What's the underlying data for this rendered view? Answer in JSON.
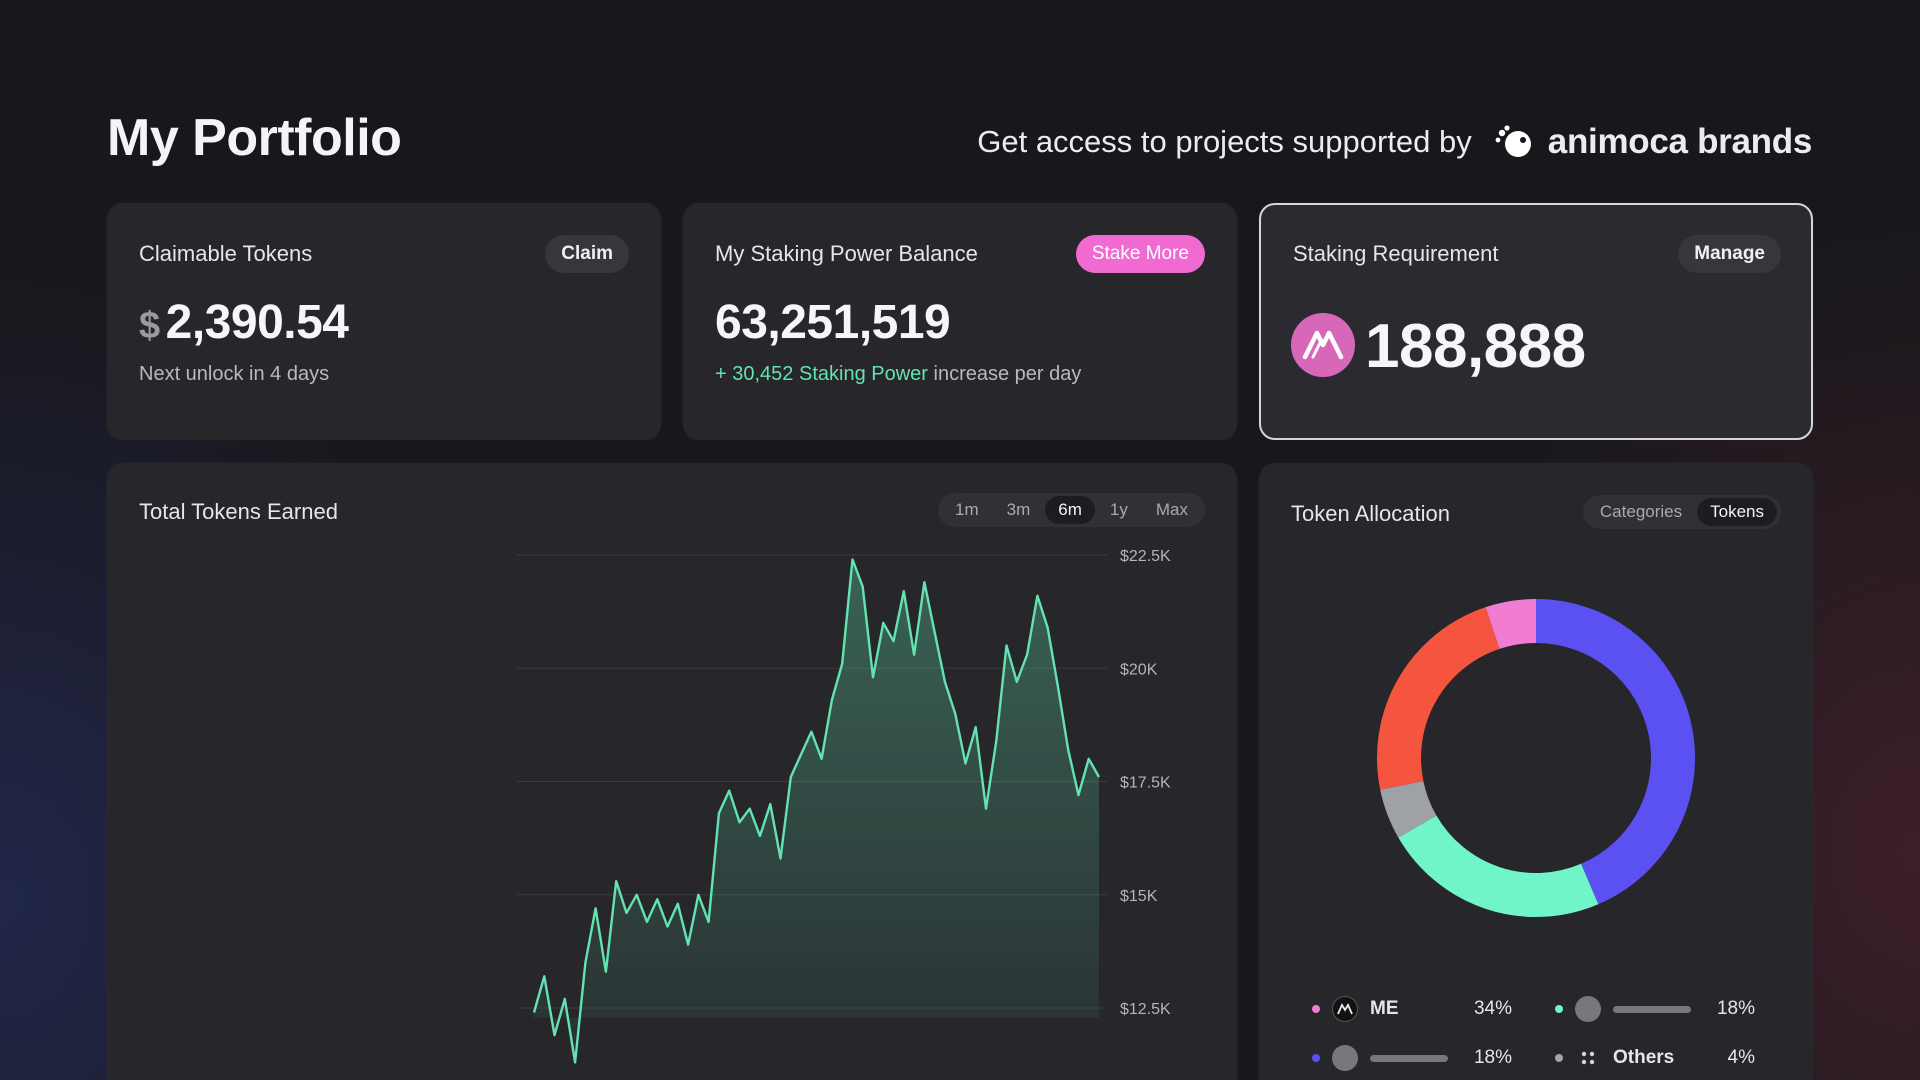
{
  "header": {
    "title": "My Portfolio",
    "partner_text": "Get access to projects supported by",
    "partner_brand": "animoca brands"
  },
  "cards": {
    "claimable": {
      "title": "Claimable Tokens",
      "button": "Claim",
      "currency": "$",
      "amount": "2,390.54",
      "note": "Next unlock in 4 days"
    },
    "staking_power": {
      "title": "My Staking Power Balance",
      "button": "Stake More",
      "amount": "63,251,519",
      "increase": "30,452 Staking Power",
      "increase_suffix": "increase per day"
    },
    "requirement": {
      "title": "Staking Requirement",
      "button": "Manage",
      "amount": "188,888",
      "icon": "me-token-icon"
    }
  },
  "earned": {
    "title": "Total Tokens Earned",
    "ranges": [
      "1m",
      "3m",
      "6m",
      "1y",
      "Max"
    ],
    "active_range": "6m"
  },
  "chart_data": {
    "type": "area",
    "title": "Total Tokens Earned",
    "yaxis_position": "right",
    "y_ticks": [
      "$22.5K",
      "$20K",
      "$17.5K",
      "$15K",
      "$12.5K"
    ],
    "ylim": [
      12500,
      22500
    ],
    "color": "#63e3b0",
    "values": [
      12400,
      13200,
      11900,
      12700,
      11300,
      13500,
      14700,
      13300,
      15300,
      14600,
      15000,
      14400,
      14900,
      14300,
      14800,
      13900,
      15000,
      14400,
      16800,
      17300,
      16600,
      16900,
      16300,
      17000,
      15800,
      17600,
      18100,
      18600,
      18000,
      19300,
      20100,
      22400,
      21800,
      19800,
      21000,
      20600,
      21700,
      20300,
      21900,
      20800,
      19700,
      19000,
      17900,
      18700,
      16900,
      18400,
      20500,
      19700,
      20300,
      21600,
      20900,
      19600,
      18200,
      17200,
      18000,
      17600
    ]
  },
  "allocation": {
    "title": "Token Allocation",
    "toggle": [
      "Categories",
      "Tokens"
    ],
    "active_toggle": "Tokens",
    "slices": [
      {
        "label": "ME",
        "percent": 34,
        "color": "#5b50f2"
      },
      {
        "label": "",
        "percent": 18,
        "color": "#6ff5c8"
      },
      {
        "label": "",
        "percent": 4,
        "color": "#9ea1a6"
      },
      {
        "label": "",
        "percent": 18,
        "color": "#f5553f"
      },
      {
        "label": "Others",
        "percent": 4,
        "color": "#f17dd3"
      }
    ],
    "legend": [
      {
        "label": "ME",
        "value": "34%",
        "dot": "#f17dd3"
      },
      {
        "label": "",
        "value": "18%",
        "dot": "#6ff5c8"
      },
      {
        "label": "",
        "value": "18%",
        "dot": "#5b50f2"
      },
      {
        "label": "Others",
        "value": "4%",
        "dot": "#a4a4aa"
      }
    ]
  }
}
